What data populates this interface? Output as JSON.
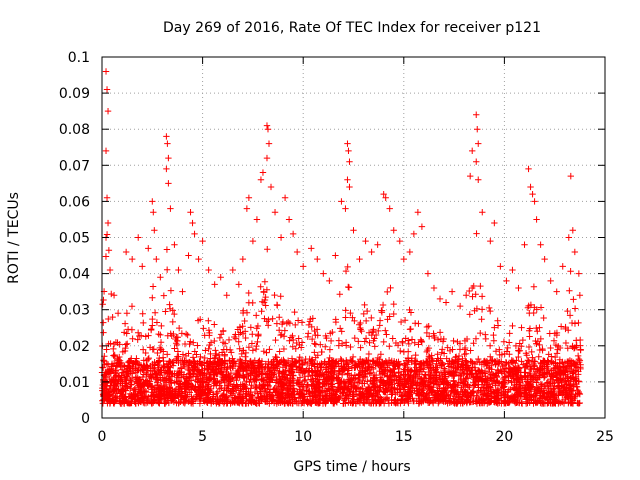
{
  "chart_data": {
    "type": "scatter",
    "title": "Day 269 of 2016, Rate Of TEC Index for receiver p121",
    "xlabel": "GPS time / hours",
    "ylabel": "ROTI / TECUs",
    "xlim": [
      0,
      25
    ],
    "ylim": [
      0,
      0.1
    ],
    "xticks": [
      0,
      5,
      10,
      15,
      20,
      25
    ],
    "xtick_labels": [
      "0",
      "5",
      "10",
      "15",
      "20",
      "25"
    ],
    "yticks": [
      0,
      0.01,
      0.02,
      0.03,
      0.04,
      0.05,
      0.06,
      0.07,
      0.08,
      0.09,
      0.1
    ],
    "ytick_labels": [
      "0",
      "0.01",
      "0.02",
      "0.03",
      "0.04",
      "0.05",
      "0.06",
      "0.07",
      "0.08",
      "0.09",
      "0.1"
    ],
    "grid": true,
    "marker": "+",
    "marker_color": "#ff0000",
    "data_range": [
      0.0,
      23.8
    ],
    "baseline_band": [
      0.004,
      0.016
    ],
    "series": [
      {
        "name": "ROTI",
        "points": [
          [
            0.2,
            0.096
          ],
          [
            0.25,
            0.091
          ],
          [
            0.3,
            0.085
          ],
          [
            0.2,
            0.074
          ],
          [
            0.25,
            0.061
          ],
          [
            0.3,
            0.054
          ],
          [
            0.2,
            0.05
          ],
          [
            0.4,
            0.041
          ],
          [
            0.6,
            0.034
          ],
          [
            0.8,
            0.029
          ],
          [
            1.2,
            0.046
          ],
          [
            1.5,
            0.044
          ],
          [
            1.8,
            0.05
          ],
          [
            2.0,
            0.042
          ],
          [
            2.3,
            0.047
          ],
          [
            2.5,
            0.06
          ],
          [
            2.55,
            0.057
          ],
          [
            2.6,
            0.052
          ],
          [
            2.7,
            0.044
          ],
          [
            2.9,
            0.039
          ],
          [
            3.2,
            0.078
          ],
          [
            3.25,
            0.076
          ],
          [
            3.3,
            0.072
          ],
          [
            3.2,
            0.069
          ],
          [
            3.3,
            0.065
          ],
          [
            3.4,
            0.058
          ],
          [
            3.6,
            0.048
          ],
          [
            3.8,
            0.041
          ],
          [
            4.0,
            0.035
          ],
          [
            4.3,
            0.045
          ],
          [
            4.4,
            0.057
          ],
          [
            4.5,
            0.054
          ],
          [
            4.6,
            0.051
          ],
          [
            4.8,
            0.044
          ],
          [
            5.0,
            0.049
          ],
          [
            5.3,
            0.041
          ],
          [
            5.6,
            0.037
          ],
          [
            5.9,
            0.039
          ],
          [
            6.2,
            0.034
          ],
          [
            6.5,
            0.041
          ],
          [
            6.8,
            0.037
          ],
          [
            7.0,
            0.044
          ],
          [
            7.2,
            0.058
          ],
          [
            7.3,
            0.061
          ],
          [
            7.5,
            0.049
          ],
          [
            7.7,
            0.055
          ],
          [
            7.9,
            0.066
          ],
          [
            8.0,
            0.068
          ],
          [
            8.2,
            0.081
          ],
          [
            8.25,
            0.08
          ],
          [
            8.3,
            0.076
          ],
          [
            8.2,
            0.072
          ],
          [
            8.4,
            0.064
          ],
          [
            8.6,
            0.057
          ],
          [
            8.9,
            0.05
          ],
          [
            9.1,
            0.061
          ],
          [
            9.3,
            0.055
          ],
          [
            9.5,
            0.051
          ],
          [
            9.7,
            0.046
          ],
          [
            10.0,
            0.042
          ],
          [
            10.4,
            0.047
          ],
          [
            10.7,
            0.044
          ],
          [
            11.0,
            0.04
          ],
          [
            11.3,
            0.038
          ],
          [
            11.6,
            0.045
          ],
          [
            11.9,
            0.06
          ],
          [
            12.1,
            0.058
          ],
          [
            12.2,
            0.076
          ],
          [
            12.25,
            0.074
          ],
          [
            12.3,
            0.071
          ],
          [
            12.2,
            0.066
          ],
          [
            12.3,
            0.064
          ],
          [
            12.5,
            0.052
          ],
          [
            12.8,
            0.044
          ],
          [
            13.1,
            0.049
          ],
          [
            13.4,
            0.046
          ],
          [
            13.7,
            0.048
          ],
          [
            14.0,
            0.062
          ],
          [
            14.1,
            0.061
          ],
          [
            14.3,
            0.058
          ],
          [
            14.5,
            0.052
          ],
          [
            14.8,
            0.049
          ],
          [
            15.0,
            0.044
          ],
          [
            15.3,
            0.046
          ],
          [
            15.5,
            0.051
          ],
          [
            15.7,
            0.057
          ],
          [
            15.9,
            0.053
          ],
          [
            16.2,
            0.04
          ],
          [
            16.5,
            0.036
          ],
          [
            16.8,
            0.033
          ],
          [
            17.1,
            0.032
          ],
          [
            17.4,
            0.035
          ],
          [
            17.8,
            0.031
          ],
          [
            18.1,
            0.034
          ],
          [
            18.3,
            0.067
          ],
          [
            18.4,
            0.074
          ],
          [
            18.6,
            0.084
          ],
          [
            18.65,
            0.08
          ],
          [
            18.7,
            0.076
          ],
          [
            18.6,
            0.071
          ],
          [
            18.7,
            0.066
          ],
          [
            18.9,
            0.057
          ],
          [
            19.3,
            0.049
          ],
          [
            19.5,
            0.054
          ],
          [
            19.8,
            0.042
          ],
          [
            20.1,
            0.038
          ],
          [
            20.4,
            0.041
          ],
          [
            20.7,
            0.036
          ],
          [
            21.0,
            0.048
          ],
          [
            21.2,
            0.069
          ],
          [
            21.3,
            0.064
          ],
          [
            21.4,
            0.062
          ],
          [
            21.5,
            0.06
          ],
          [
            21.6,
            0.055
          ],
          [
            21.8,
            0.048
          ],
          [
            22.0,
            0.044
          ],
          [
            22.3,
            0.038
          ],
          [
            22.6,
            0.035
          ],
          [
            22.9,
            0.042
          ],
          [
            23.2,
            0.05
          ],
          [
            23.3,
            0.067
          ],
          [
            23.4,
            0.052
          ],
          [
            23.5,
            0.046
          ],
          [
            23.7,
            0.04
          ],
          [
            23.75,
            0.034
          ]
        ]
      }
    ]
  }
}
